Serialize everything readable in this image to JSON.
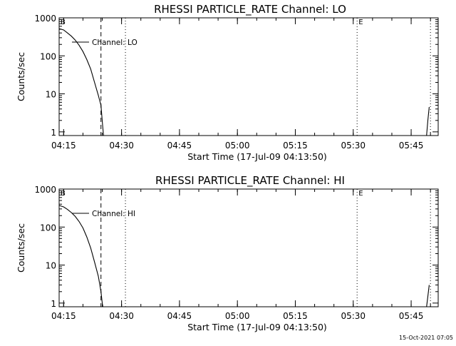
{
  "footer_timestamp": "15-Oct-2021 07:05",
  "chart_data": [
    {
      "type": "line",
      "title": "RHESSI PARTICLE_RATE Channel: LO",
      "xlabel": "Start Time (17-Jul-09 04:13:50)",
      "ylabel": "Counts/sec",
      "y_scale": "log",
      "ylim": [
        0.8,
        1000
      ],
      "y_ticks": [
        1,
        10,
        100,
        1000
      ],
      "xlim": [
        "04:13:50",
        "05:52:00"
      ],
      "x_ticks": [
        "04:15",
        "04:30",
        "04:45",
        "05:00",
        "05:15",
        "05:30",
        "05:45"
      ],
      "legend": "Channel: LO",
      "markers": [
        {
          "label": "B",
          "time": "04:13:50",
          "style": "dotted"
        },
        {
          "label": "",
          "time": "04:24:40",
          "style": "dashed"
        },
        {
          "label": "",
          "time": "04:31:00",
          "style": "dotted"
        },
        {
          "label": "E",
          "time": "05:31:00",
          "style": "dotted"
        },
        {
          "label": "",
          "time": "05:50:00",
          "style": "dotted"
        }
      ],
      "series": [
        {
          "segments": [
            [
              [
                "04:13:50",
                520
              ],
              [
                "04:15:00",
                480
              ],
              [
                "04:16:00",
                400
              ],
              [
                "04:17:00",
                330
              ],
              [
                "04:18:00",
                260
              ],
              [
                "04:19:00",
                190
              ],
              [
                "04:20:00",
                130
              ],
              [
                "04:21:00",
                80
              ],
              [
                "04:22:00",
                45
              ],
              [
                "04:23:00",
                20
              ],
              [
                "04:24:00",
                9
              ],
              [
                "04:24:40",
                5
              ],
              [
                "04:25:05",
                1.5
              ],
              [
                "04:25:20",
                0.8
              ]
            ],
            [
              [
                "05:49:00",
                0.8
              ],
              [
                "05:49:20",
                2
              ],
              [
                "05:49:40",
                4.5
              ]
            ]
          ]
        }
      ]
    },
    {
      "type": "line",
      "title": "RHESSI PARTICLE_RATE Channel: HI",
      "xlabel": "Start Time (17-Jul-09 04:13:50)",
      "ylabel": "Counts/sec",
      "y_scale": "log",
      "ylim": [
        0.8,
        1000
      ],
      "y_ticks": [
        1,
        10,
        100,
        1000
      ],
      "xlim": [
        "04:13:50",
        "05:52:00"
      ],
      "x_ticks": [
        "04:15",
        "04:30",
        "04:45",
        "05:00",
        "05:15",
        "05:30",
        "05:45"
      ],
      "legend": "Channel: HI",
      "markers": [
        {
          "label": "B",
          "time": "04:13:50",
          "style": "dotted"
        },
        {
          "label": "",
          "time": "04:24:40",
          "style": "dashed"
        },
        {
          "label": "",
          "time": "04:31:00",
          "style": "dotted"
        },
        {
          "label": "E",
          "time": "05:31:00",
          "style": "dotted"
        },
        {
          "label": "",
          "time": "05:50:00",
          "style": "dotted"
        }
      ],
      "series": [
        {
          "segments": [
            [
              [
                "04:13:50",
                370
              ],
              [
                "04:15:00",
                340
              ],
              [
                "04:16:00",
                290
              ],
              [
                "04:17:00",
                240
              ],
              [
                "04:18:00",
                190
              ],
              [
                "04:19:00",
                140
              ],
              [
                "04:20:00",
                95
              ],
              [
                "04:21:00",
                55
              ],
              [
                "04:22:00",
                28
              ],
              [
                "04:23:00",
                12
              ],
              [
                "04:24:00",
                5
              ],
              [
                "04:24:40",
                2
              ],
              [
                "04:25:00",
                1
              ],
              [
                "04:25:10",
                0.8
              ]
            ],
            [
              [
                "05:49:00",
                0.8
              ],
              [
                "05:49:20",
                1.5
              ],
              [
                "05:49:40",
                3
              ]
            ]
          ]
        }
      ]
    }
  ]
}
